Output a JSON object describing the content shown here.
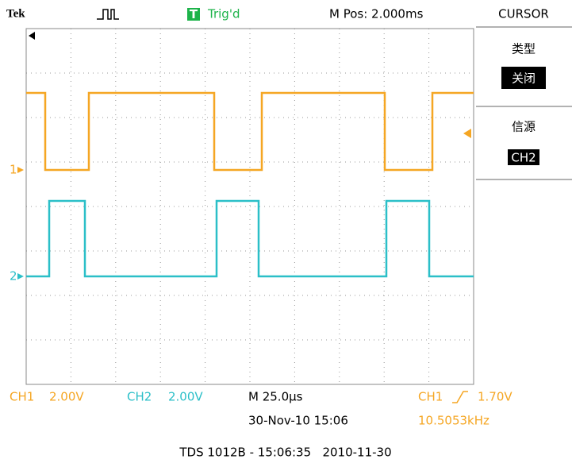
{
  "header": {
    "brand": "Tek",
    "trigger_status": "Trig'd",
    "position": "M Pos: 2.000ms"
  },
  "menu": {
    "title": "CURSOR",
    "items": [
      {
        "label": "类型",
        "value": "关闭"
      },
      {
        "label": "信源",
        "value": "CH2"
      }
    ]
  },
  "markers": {
    "ch1": "1",
    "ch2": "2"
  },
  "footer": {
    "ch1_name": "CH1",
    "ch1_scale": "2.00V",
    "ch2_name": "CH2",
    "ch2_scale": "2.00V",
    "timebase": "M 25.0µs",
    "datetime": "30-Nov-10 15:06",
    "trigger_source": "CH1",
    "trigger_level": "1.70V",
    "frequency": "10.5053kHz"
  },
  "caption": "TDS 1012B - 15:06:35   2010-11-30"
}
